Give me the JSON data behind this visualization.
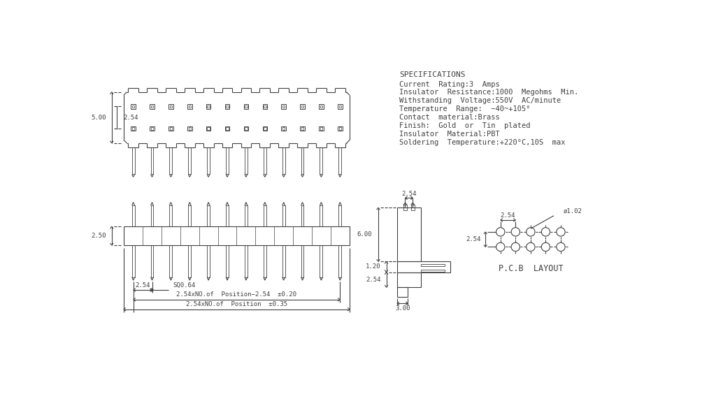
{
  "bg_color": "#ffffff",
  "line_color": "#404040",
  "fig_width": 10.24,
  "fig_height": 5.84,
  "specs_title": "SPECIFICATIONS",
  "specs_lines": [
    "Current  Rating:3  Amps",
    "Insulator  Resistance:1000  Megohms  Min.",
    "Withstanding  Voltage:550V  AC/minute",
    "Temperature  Range:  −40~+105°",
    "Contact  material:Brass",
    "Finish:  Gold  or  Tin  plated",
    "Insulator  Material:PBT",
    "Soldering  Temperature:+220°C,10S  max"
  ],
  "pcb_layout_label": "P.C.B  LAYOUT",
  "n_pins": 12,
  "top_500": "5.00",
  "top_254": "2.54",
  "side_250": "2.50",
  "bottom_254": "2.54",
  "bottom_sq064": "SQ0.64",
  "bottom_formula1": "2.54xNO.of  Position−2.54  ±0.20",
  "bottom_formula2": "2.54xNO.of  Position  ±0.35",
  "sv_600": "6.00",
  "sv_120": "1.20",
  "sv_254": "2.54",
  "sv_300": "3.00",
  "sv_254top": "2.54",
  "pcb_254h": "2.54",
  "pcb_254v": "2.54",
  "pcb_102": "ø1.02"
}
